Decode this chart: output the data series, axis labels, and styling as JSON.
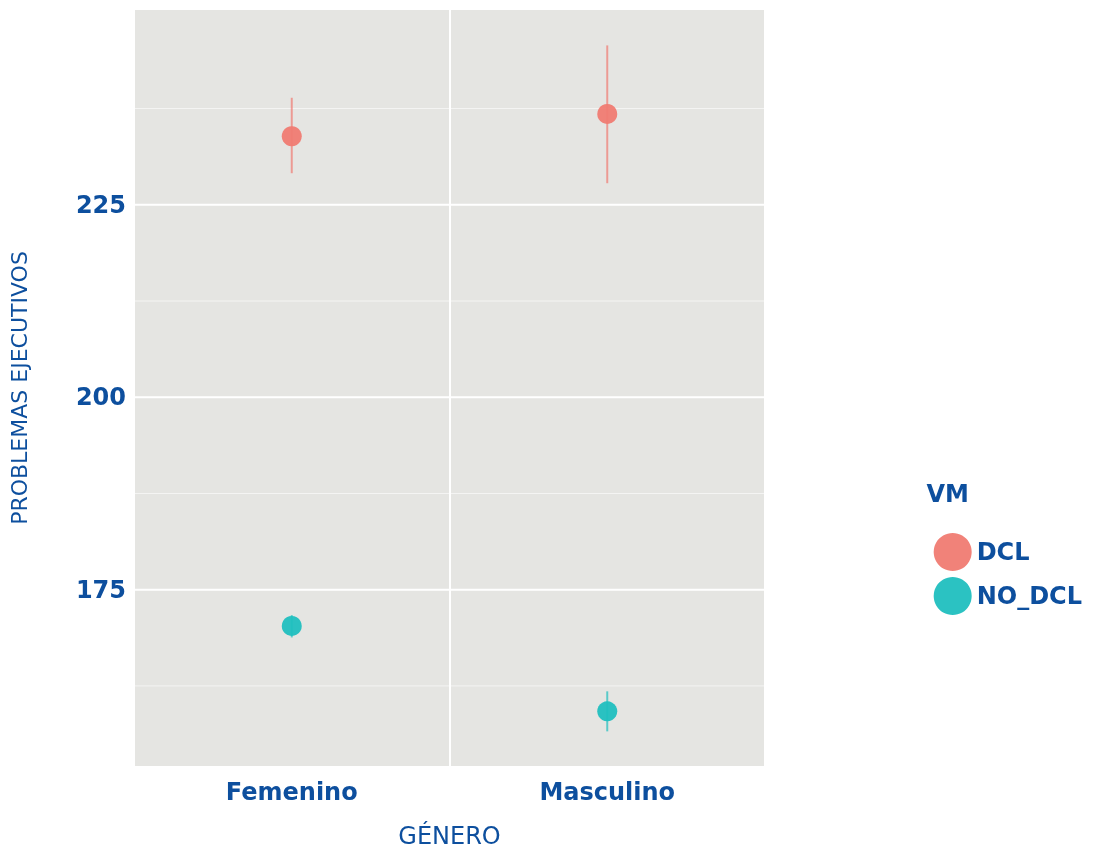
{
  "chart_data": {
    "type": "scatter",
    "xlabel": "GÉNERO",
    "ylabel": "PROBLEMAS EJECUTIVOS",
    "legend_title": "VM",
    "categories": [
      "Femenino",
      "Masculino"
    ],
    "series": [
      {
        "name": "DCL",
        "color": "#f07b72",
        "values": [
          233.9,
          236.8
        ],
        "errors": [
          [
            229.1,
            238.9
          ],
          [
            227.8,
            245.7
          ]
        ]
      },
      {
        "name": "NO_DCL",
        "color": "#20bfbf",
        "values": [
          170.3,
          159.2
        ],
        "errors": [
          [
            168.8,
            171.7
          ],
          [
            156.6,
            161.8
          ]
        ]
      }
    ],
    "ylim": [
      152.1,
      250.3
    ],
    "yticks": [
      {
        "value": 162.5,
        "label": null
      },
      175,
      {
        "value": 187.5,
        "label": null
      },
      200,
      {
        "value": 212.5,
        "label": null
      },
      225,
      {
        "value": 237.5,
        "label": null
      }
    ],
    "grid": true,
    "legend": "right",
    "marker": "circle"
  }
}
